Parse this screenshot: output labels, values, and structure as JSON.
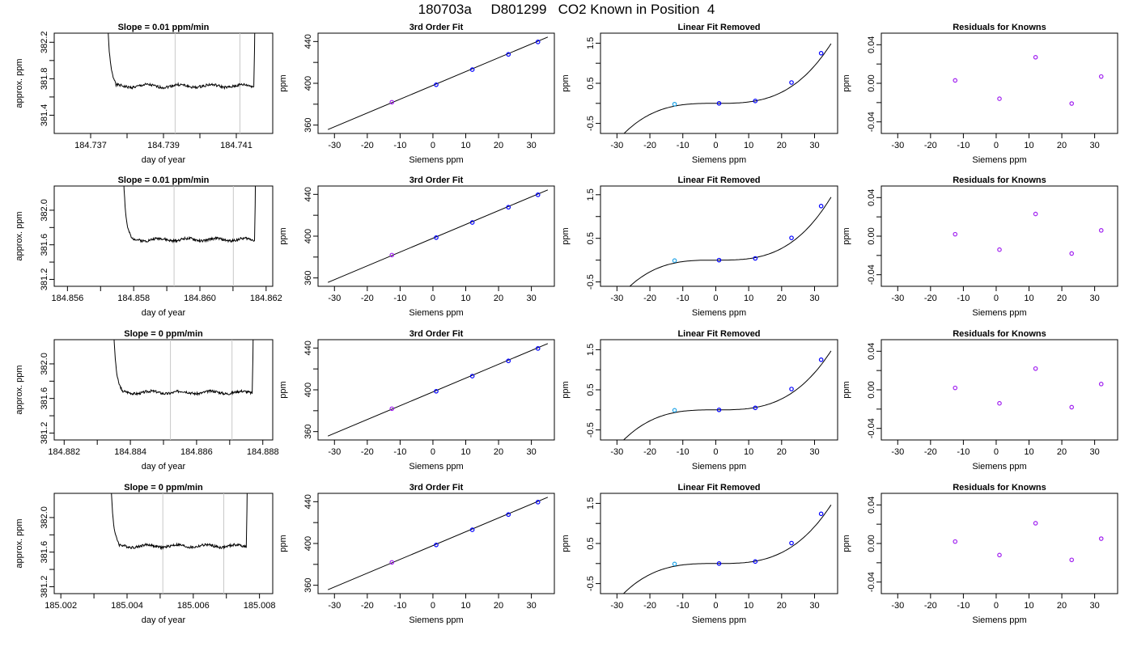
{
  "page": {
    "title": "180703a     D801299   CO2 Known in Position  4"
  },
  "colors": {
    "line": "#000000",
    "cursor_lines": "#c8c8c8",
    "point_outline": "#0000ff",
    "point_alt_1": "#a020f0",
    "point_alt_2": "#22a5e8"
  },
  "chart_data": [
    {
      "type": "line",
      "title": "Slope =  0.01  ppm/min",
      "xlabel": "day of year",
      "ylabel": "approx. ppm",
      "xlim": [
        184.736,
        184.742
      ],
      "ylim": [
        381.2,
        382.3
      ],
      "xticks": [
        184.737,
        184.739,
        184.741
      ],
      "xtick_labels": [
        "184.737",
        "184.739",
        "184.741"
      ],
      "xticks_minor": [
        184.738,
        184.74
      ],
      "yticks": [
        381.4,
        381.8,
        382.2
      ],
      "ytick_labels": [
        "381.4",
        "381.8",
        "382.2"
      ],
      "yticks_minor": [
        381.6,
        382.0
      ],
      "series_params": {
        "t_start": 184.73745,
        "t_end": 184.74148,
        "level": 381.72,
        "seed": 1
      },
      "vlines": [
        184.73932,
        184.7411
      ]
    },
    {
      "type": "scatter",
      "title": "3rd Order Fit",
      "xlabel": "Siemens ppm",
      "ylabel": "ppm",
      "xlim": [
        -35,
        37
      ],
      "ylim": [
        352,
        448
      ],
      "xticks": [
        -30,
        -20,
        -10,
        0,
        10,
        20,
        30
      ],
      "xtick_labels": [
        "-30",
        "-20",
        "-10",
        "0",
        "10",
        "20",
        "30"
      ],
      "yticks": [
        360,
        400,
        440
      ],
      "ytick_labels": [
        "360",
        "400",
        "440"
      ],
      "yticks_minor": [
        380,
        420
      ],
      "points": {
        "x": [
          -12.5,
          1,
          12,
          23,
          32
        ],
        "y": [
          381.9,
          398.6,
          413.1,
          427.7,
          439.6
        ]
      },
      "point_colors": [
        "#a020f0",
        "#0000ff",
        "#0000ff",
        "#0000ff",
        "#0000ff"
      ],
      "fit": {
        "type": "linear",
        "x0": -32,
        "y0": 355.7,
        "x1": 35,
        "y1": 444.3
      }
    },
    {
      "type": "scatter",
      "title": "Linear Fit Removed",
      "xlabel": "Siemens ppm",
      "ylabel": "ppm",
      "xlim": [
        -35,
        37
      ],
      "ylim": [
        -0.75,
        1.75
      ],
      "xticks": [
        -30,
        -20,
        -10,
        0,
        10,
        20,
        30
      ],
      "xtick_labels": [
        "-30",
        "-20",
        "-10",
        "0",
        "10",
        "20",
        "30"
      ],
      "yticks": [
        -0.5,
        0.5,
        1.5
      ],
      "ytick_labels": [
        "-0.5",
        "0.5",
        "1.5"
      ],
      "yticks_minor": [
        0.0,
        1.0
      ],
      "points": {
        "x": [
          -12.5,
          1,
          12,
          23,
          32
        ],
        "y": [
          -0.02,
          0.0,
          0.06,
          0.52,
          1.25
        ]
      },
      "point_colors": [
        "#22a5e8",
        "#0000ff",
        "#0000ff",
        "#0000ff",
        "#0000ff"
      ],
      "fit": {
        "type": "cubic",
        "inflection_x": 0,
        "inflection_y": 0,
        "coef": 3.47e-05,
        "x_from": -32,
        "x_to": 35
      }
    },
    {
      "type": "scatter",
      "title": "Residuals for Knowns",
      "xlabel": "Siemens ppm",
      "ylabel": "ppm",
      "xlim": [
        -35,
        37
      ],
      "ylim": [
        -0.052,
        0.052
      ],
      "xticks": [
        -30,
        -20,
        -10,
        0,
        10,
        20,
        30
      ],
      "xtick_labels": [
        "-30",
        "-20",
        "-10",
        "0",
        "10",
        "20",
        "30"
      ],
      "yticks": [
        -0.04,
        0.0,
        0.04
      ],
      "ytick_labels": [
        "-0.04",
        "0.00",
        "0.04"
      ],
      "yticks_minor": [
        -0.02,
        0.02
      ],
      "points": {
        "x": [
          -12.5,
          1,
          12,
          23,
          32
        ],
        "y": [
          0.003,
          -0.016,
          0.027,
          -0.021,
          0.007
        ]
      },
      "point_colors": [
        "#a020f0",
        "#a020f0",
        "#a020f0",
        "#a020f0",
        "#a020f0"
      ]
    },
    {
      "type": "line",
      "title": "Slope =  0.01  ppm/min",
      "xlabel": "day of year",
      "ylabel": "approx. ppm",
      "xlim": [
        184.8556,
        184.8622
      ],
      "ylim": [
        381.12,
        382.28
      ],
      "xticks": [
        184.856,
        184.858,
        184.86,
        184.862
      ],
      "xtick_labels": [
        "184.856",
        "184.858",
        "184.860",
        "184.862"
      ],
      "xticks_minor": [
        184.857,
        184.859,
        184.861
      ],
      "yticks": [
        381.2,
        381.6,
        382.0
      ],
      "ytick_labels": [
        "381.2",
        "381.6",
        "382.0"
      ],
      "yticks_minor": [
        381.4,
        381.8
      ],
      "series_params": {
        "t_start": 184.85768,
        "t_end": 184.86165,
        "level": 381.66,
        "seed": 2
      },
      "vlines": [
        184.85922,
        184.86101
      ]
    },
    {
      "type": "scatter",
      "title": "3rd Order Fit",
      "xlabel": "Siemens ppm",
      "ylabel": "ppm",
      "xlim": [
        -35,
        37
      ],
      "ylim": [
        352,
        448
      ],
      "xticks": [
        -30,
        -20,
        -10,
        0,
        10,
        20,
        30
      ],
      "xtick_labels": [
        "-30",
        "-20",
        "-10",
        "0",
        "10",
        "20",
        "30"
      ],
      "yticks": [
        360,
        400,
        440
      ],
      "ytick_labels": [
        "360",
        "400",
        "440"
      ],
      "yticks_minor": [
        380,
        420
      ],
      "points": {
        "x": [
          -12.5,
          1,
          12,
          23,
          32
        ],
        "y": [
          381.9,
          398.6,
          413.1,
          427.7,
          439.6
        ]
      },
      "point_colors": [
        "#a020f0",
        "#0000ff",
        "#0000ff",
        "#0000ff",
        "#0000ff"
      ],
      "fit": {
        "type": "linear",
        "x0": -32,
        "y0": 355.7,
        "x1": 35,
        "y1": 444.3
      }
    },
    {
      "type": "scatter",
      "title": "Linear Fit Removed",
      "xlabel": "Siemens ppm",
      "ylabel": "ppm",
      "xlim": [
        -35,
        37
      ],
      "ylim": [
        -0.6,
        1.7
      ],
      "xticks": [
        -30,
        -20,
        -10,
        0,
        10,
        20,
        30
      ],
      "xtick_labels": [
        "-30",
        "-20",
        "-10",
        "0",
        "10",
        "20",
        "30"
      ],
      "yticks": [
        -0.5,
        0.5,
        1.5
      ],
      "ytick_labels": [
        "-0.5",
        "0.5",
        "1.5"
      ],
      "yticks_minor": [
        0.0,
        1.0
      ],
      "points": {
        "x": [
          -12.5,
          1,
          12,
          23,
          32
        ],
        "y": [
          -0.01,
          0.0,
          0.04,
          0.51,
          1.24
        ]
      },
      "point_colors": [
        "#22a5e8",
        "#0000ff",
        "#0000ff",
        "#0000ff",
        "#0000ff"
      ],
      "fit": {
        "type": "cubic",
        "inflection_x": 0,
        "inflection_y": 0,
        "coef": 3.37e-05,
        "x_from": -32,
        "x_to": 35
      }
    },
    {
      "type": "scatter",
      "title": "Residuals for Knowns",
      "xlabel": "Siemens ppm",
      "ylabel": "ppm",
      "xlim": [
        -35,
        37
      ],
      "ylim": [
        -0.052,
        0.052
      ],
      "xticks": [
        -30,
        -20,
        -10,
        0,
        10,
        20,
        30
      ],
      "xtick_labels": [
        "-30",
        "-20",
        "-10",
        "0",
        "10",
        "20",
        "30"
      ],
      "yticks": [
        -0.04,
        0.0,
        0.04
      ],
      "ytick_labels": [
        "-0.04",
        "0.00",
        "0.04"
      ],
      "yticks_minor": [
        -0.02,
        0.02
      ],
      "points": {
        "x": [
          -12.5,
          1,
          12,
          23,
          32
        ],
        "y": [
          0.002,
          -0.014,
          0.023,
          -0.018,
          0.006
        ]
      },
      "point_colors": [
        "#a020f0",
        "#a020f0",
        "#a020f0",
        "#a020f0",
        "#a020f0"
      ]
    },
    {
      "type": "line",
      "title": "Slope =  0  ppm/min",
      "xlabel": "day of year",
      "ylabel": "approx. ppm",
      "xlim": [
        184.8817,
        184.8883
      ],
      "ylim": [
        381.12,
        382.28
      ],
      "xticks": [
        184.882,
        184.884,
        184.886,
        184.888
      ],
      "xtick_labels": [
        "184.882",
        "184.884",
        "184.886",
        "184.888"
      ],
      "xticks_minor": [
        184.883,
        184.885,
        184.887
      ],
      "yticks": [
        381.2,
        381.6,
        382.0
      ],
      "ytick_labels": [
        "381.2",
        "381.6",
        "382.0"
      ],
      "yticks_minor": [
        381.4,
        381.8
      ],
      "series_params": {
        "t_start": 184.88348,
        "t_end": 184.88768,
        "level": 381.67,
        "seed": 3
      },
      "vlines": [
        184.88521,
        184.88707
      ]
    },
    {
      "type": "scatter",
      "title": "3rd Order Fit",
      "xlabel": "Siemens ppm",
      "ylabel": "ppm",
      "xlim": [
        -35,
        37
      ],
      "ylim": [
        352,
        448
      ],
      "xticks": [
        -30,
        -20,
        -10,
        0,
        10,
        20,
        30
      ],
      "xtick_labels": [
        "-30",
        "-20",
        "-10",
        "0",
        "10",
        "20",
        "30"
      ],
      "yticks": [
        360,
        400,
        440
      ],
      "ytick_labels": [
        "360",
        "400",
        "440"
      ],
      "yticks_minor": [
        380,
        420
      ],
      "points": {
        "x": [
          -12.5,
          1,
          12,
          23,
          32
        ],
        "y": [
          381.9,
          398.6,
          413.1,
          427.7,
          439.6
        ]
      },
      "point_colors": [
        "#a020f0",
        "#0000ff",
        "#0000ff",
        "#0000ff",
        "#0000ff"
      ],
      "fit": {
        "type": "linear",
        "x0": -32,
        "y0": 355.7,
        "x1": 35,
        "y1": 444.3
      }
    },
    {
      "type": "scatter",
      "title": "Linear Fit Removed",
      "xlabel": "Siemens ppm",
      "ylabel": "ppm",
      "xlim": [
        -35,
        37
      ],
      "ylim": [
        -0.75,
        1.75
      ],
      "xticks": [
        -30,
        -20,
        -10,
        0,
        10,
        20,
        30
      ],
      "xtick_labels": [
        "-30",
        "-20",
        "-10",
        "0",
        "10",
        "20",
        "30"
      ],
      "yticks": [
        -0.5,
        0.5,
        1.5
      ],
      "ytick_labels": [
        "-0.5",
        "0.5",
        "1.5"
      ],
      "yticks_minor": [
        0.0,
        1.0
      ],
      "points": {
        "x": [
          -12.5,
          1,
          12,
          23,
          32
        ],
        "y": [
          -0.01,
          0.0,
          0.05,
          0.52,
          1.25
        ]
      },
      "point_colors": [
        "#22a5e8",
        "#0000ff",
        "#0000ff",
        "#0000ff",
        "#0000ff"
      ],
      "fit": {
        "type": "cubic",
        "inflection_x": 0,
        "inflection_y": 0,
        "coef": 3.43e-05,
        "x_from": -32,
        "x_to": 35
      }
    },
    {
      "type": "scatter",
      "title": "Residuals for Knowns",
      "xlabel": "Siemens ppm",
      "ylabel": "ppm",
      "xlim": [
        -35,
        37
      ],
      "ylim": [
        -0.052,
        0.052
      ],
      "xticks": [
        -30,
        -20,
        -10,
        0,
        10,
        20,
        30
      ],
      "xtick_labels": [
        "-30",
        "-20",
        "-10",
        "0",
        "10",
        "20",
        "30"
      ],
      "yticks": [
        -0.04,
        0.0,
        0.04
      ],
      "ytick_labels": [
        "-0.04",
        "0.00",
        "0.04"
      ],
      "yticks_minor": [
        -0.02,
        0.02
      ],
      "points": {
        "x": [
          -12.5,
          1,
          12,
          23,
          32
        ],
        "y": [
          0.002,
          -0.014,
          0.022,
          -0.018,
          0.006
        ]
      },
      "point_colors": [
        "#a020f0",
        "#a020f0",
        "#a020f0",
        "#a020f0",
        "#a020f0"
      ]
    },
    {
      "type": "line",
      "title": "Slope =  0  ppm/min",
      "xlabel": "day of year",
      "ylabel": "approx. ppm",
      "xlim": [
        185.0018,
        185.0084
      ],
      "ylim": [
        381.12,
        382.28
      ],
      "xticks": [
        185.002,
        185.004,
        185.006,
        185.008
      ],
      "xtick_labels": [
        "185.002",
        "185.004",
        "185.006",
        "185.008"
      ],
      "xticks_minor": [
        185.003,
        185.005,
        185.007
      ],
      "yticks": [
        381.2,
        381.6,
        382.0
      ],
      "ytick_labels": [
        "381.2",
        "381.6",
        "382.0"
      ],
      "yticks_minor": [
        381.4,
        381.8
      ],
      "series_params": {
        "t_start": 185.0035,
        "t_end": 185.0076,
        "level": 381.67,
        "seed": 4
      },
      "vlines": [
        185.00508,
        185.00692
      ]
    },
    {
      "type": "scatter",
      "title": "3rd Order Fit",
      "xlabel": "Siemens ppm",
      "ylabel": "ppm",
      "xlim": [
        -35,
        37
      ],
      "ylim": [
        352,
        448
      ],
      "xticks": [
        -30,
        -20,
        -10,
        0,
        10,
        20,
        30
      ],
      "xtick_labels": [
        "-30",
        "-20",
        "-10",
        "0",
        "10",
        "20",
        "30"
      ],
      "yticks": [
        360,
        400,
        440
      ],
      "ytick_labels": [
        "360",
        "400",
        "440"
      ],
      "yticks_minor": [
        380,
        420
      ],
      "points": {
        "x": [
          -12.5,
          1,
          12,
          23,
          32
        ],
        "y": [
          381.9,
          398.6,
          413.1,
          427.7,
          439.6
        ]
      },
      "point_colors": [
        "#a020f0",
        "#0000ff",
        "#0000ff",
        "#0000ff",
        "#0000ff"
      ],
      "fit": {
        "type": "linear",
        "x0": -32,
        "y0": 355.7,
        "x1": 35,
        "y1": 444.3
      }
    },
    {
      "type": "scatter",
      "title": "Linear Fit Removed",
      "xlabel": "Siemens ppm",
      "ylabel": "ppm",
      "xlim": [
        -35,
        37
      ],
      "ylim": [
        -0.75,
        1.75
      ],
      "xticks": [
        -30,
        -20,
        -10,
        0,
        10,
        20,
        30
      ],
      "xtick_labels": [
        "-30",
        "-20",
        "-10",
        "0",
        "10",
        "20",
        "30"
      ],
      "yticks": [
        -0.5,
        0.5,
        1.5
      ],
      "ytick_labels": [
        "-0.5",
        "0.5",
        "1.5"
      ],
      "yticks_minor": [
        0.0,
        1.0
      ],
      "points": {
        "x": [
          -12.5,
          1,
          12,
          23,
          32
        ],
        "y": [
          -0.01,
          0.0,
          0.05,
          0.51,
          1.24
        ]
      },
      "point_colors": [
        "#22a5e8",
        "#0000ff",
        "#0000ff",
        "#0000ff",
        "#0000ff"
      ],
      "fit": {
        "type": "cubic",
        "inflection_x": 0,
        "inflection_y": 0,
        "coef": 3.41e-05,
        "x_from": -32,
        "x_to": 35
      }
    },
    {
      "type": "scatter",
      "title": "Residuals for Knowns",
      "xlabel": "Siemens ppm",
      "ylabel": "ppm",
      "xlim": [
        -35,
        37
      ],
      "ylim": [
        -0.052,
        0.052
      ],
      "xticks": [
        -30,
        -20,
        -10,
        0,
        10,
        20,
        30
      ],
      "xtick_labels": [
        "-30",
        "-20",
        "-10",
        "0",
        "10",
        "20",
        "30"
      ],
      "yticks": [
        -0.04,
        0.0,
        0.04
      ],
      "ytick_labels": [
        "-0.04",
        "0.00",
        "0.04"
      ],
      "yticks_minor": [
        -0.02,
        0.02
      ],
      "points": {
        "x": [
          -12.5,
          1,
          12,
          23,
          32
        ],
        "y": [
          0.002,
          -0.012,
          0.021,
          -0.017,
          0.005
        ]
      },
      "point_colors": [
        "#a020f0",
        "#a020f0",
        "#a020f0",
        "#a020f0",
        "#a020f0"
      ]
    }
  ]
}
